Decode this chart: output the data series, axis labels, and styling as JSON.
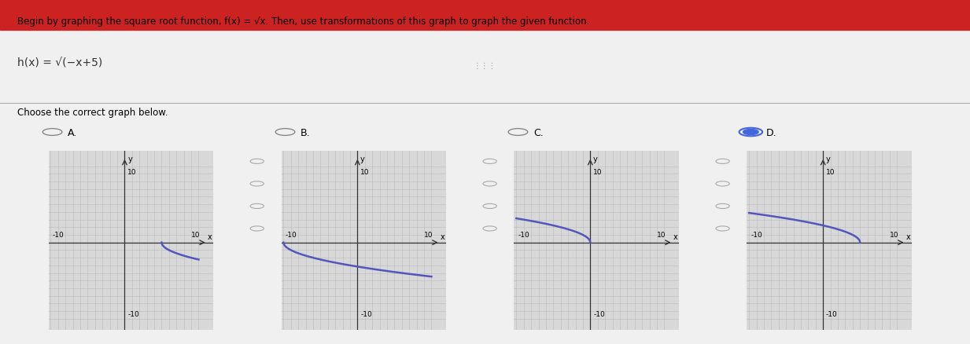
{
  "title_line1": "Begin by graphing the square root function, f(x) = √x. Then, use transformations of this graph to graph the given function.",
  "function_label": "h(x) = √−x+5",
  "subtitle": "Choose the correct graph below.",
  "graphs": [
    {
      "label": "A.",
      "selected": false,
      "curve": "A"
    },
    {
      "label": "B.",
      "selected": false,
      "curve": "B"
    },
    {
      "label": "C.",
      "selected": false,
      "curve": "C"
    },
    {
      "label": "D.",
      "selected": true,
      "curve": "D"
    }
  ],
  "xmin": -10,
  "xmax": 10,
  "ymin": -10,
  "ymax": 10,
  "curve_color": "#5555bb",
  "curve_lw": 1.8,
  "grid_color": "#bbbbbb",
  "grid_lw": 0.4,
  "axis_color": "#333333",
  "bg_color": "#d8d8d8",
  "panel_bg": "#ffffff",
  "selected_color": "#4466dd",
  "unselected_color": "#888888",
  "header_bg": "#f0f0f0",
  "outer_bg": "#f0f0f0"
}
